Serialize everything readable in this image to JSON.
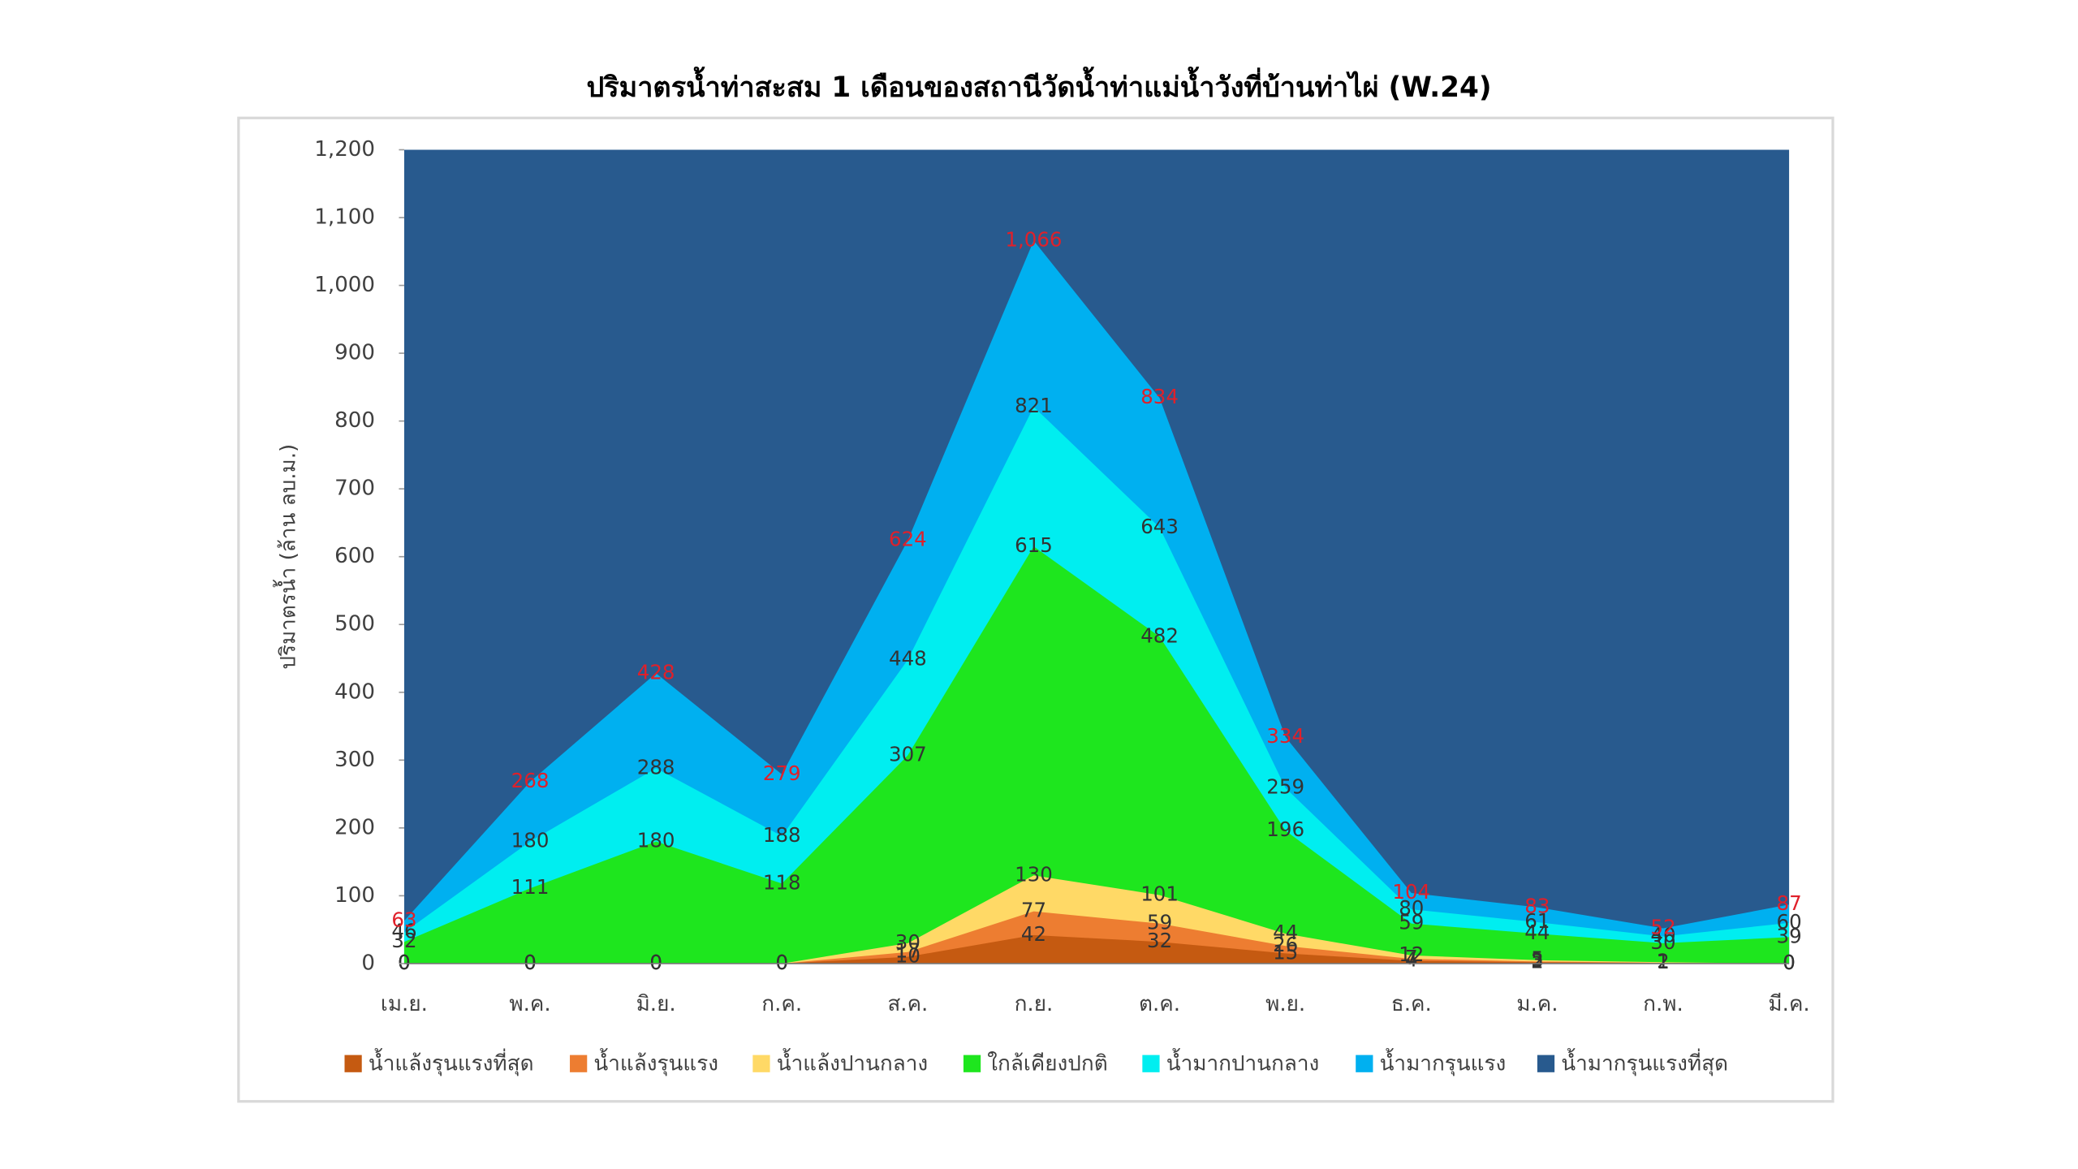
{
  "chart_data": {
    "type": "area",
    "title": "ปริมาตรน้ำท่าสะสม 1 เดือนของสถานีวัดน้ำท่าแม่น้ำวังที่บ้านท่าไผ่ (W.24)",
    "y_label": "ปริมาตรน้ำ (ล้าน ลบ.ม.)",
    "categories": [
      "เม.ย.",
      "พ.ค.",
      "มิ.ย.",
      "ก.ค.",
      "ส.ค.",
      "ก.ย.",
      "ต.ค.",
      "พ.ย.",
      "ธ.ค.",
      "ม.ค.",
      "ก.พ.",
      "มี.ค."
    ],
    "ylim": [
      0,
      1200
    ],
    "yticks": [
      0,
      100,
      200,
      300,
      400,
      500,
      600,
      700,
      800,
      900,
      {
        "value": 1000,
        "label": "1,000"
      },
      {
        "value": 1100,
        "label": "1,100"
      },
      {
        "value": 1200,
        "label": "1,200"
      }
    ],
    "series": [
      {
        "name": "น้ำแล้งรุนแรงที่สุด",
        "color": "#c55a11",
        "values": [
          0,
          0,
          0,
          0,
          10,
          42,
          32,
          15,
          4,
          2,
          1,
          0
        ]
      },
      {
        "name": "น้ำแล้งรุนแรง",
        "color": "#ed7d31",
        "values": [
          0,
          0,
          0,
          0,
          17,
          77,
          59,
          26,
          7,
          3,
          1,
          0
        ]
      },
      {
        "name": "น้ำแล้งปานกลาง",
        "color": "#ffd966",
        "values": [
          0,
          0,
          0,
          0,
          30,
          130,
          101,
          44,
          12,
          5,
          2,
          0
        ]
      },
      {
        "name": "ใกล้เคียงปกติ",
        "color": "#1ee61e",
        "values": [
          32,
          111,
          180,
          118,
          307,
          615,
          482,
          196,
          59,
          44,
          30,
          39
        ]
      },
      {
        "name": "น้ำมากปานกลาง",
        "color": "#00eef0",
        "values": [
          46,
          180,
          288,
          188,
          448,
          821,
          643,
          259,
          80,
          61,
          40,
          60
        ]
      },
      {
        "name": "น้ำมากรุนแรง",
        "color": "#00b0f0",
        "values": [
          63,
          268,
          428,
          279,
          624,
          1066,
          834,
          334,
          104,
          83,
          52,
          87
        ],
        "value_labels": [
          "63",
          "268",
          "428",
          "279",
          "624",
          "1,066",
          "834",
          "334",
          "104",
          "83",
          "52",
          "87"
        ]
      },
      {
        "name": "น้ำมากรุนแรงที่สุด",
        "color": "#285a8e"
      }
    ]
  }
}
